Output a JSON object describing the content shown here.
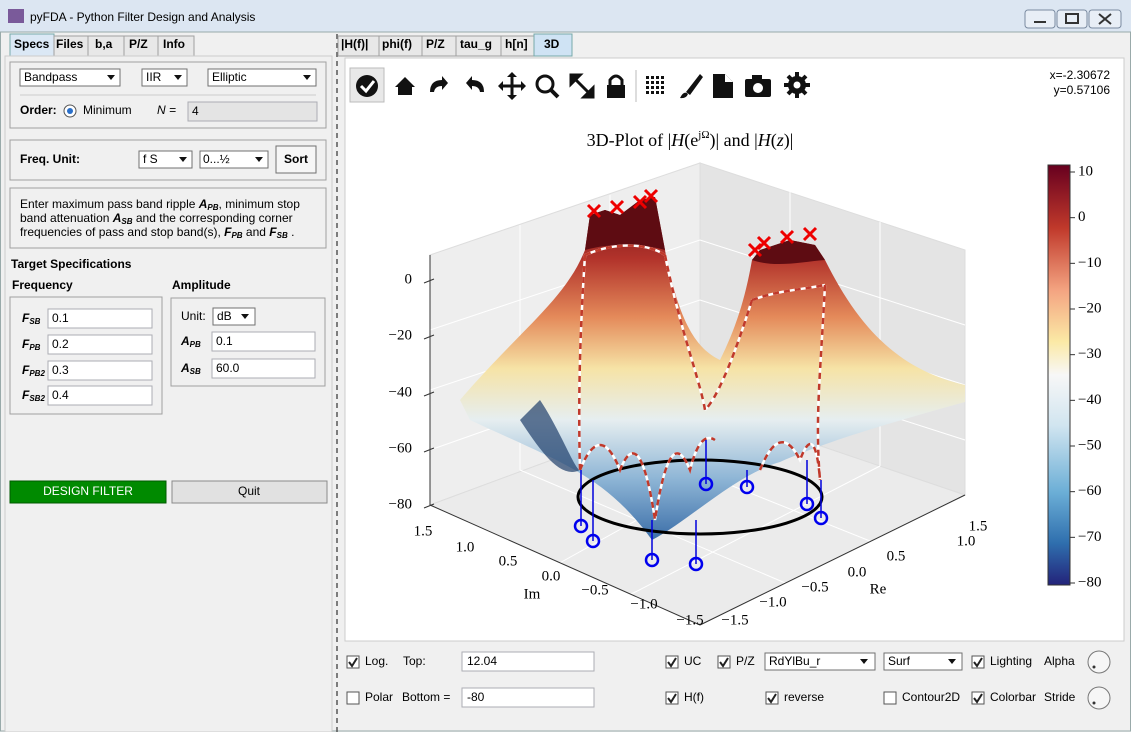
{
  "window": {
    "title": "pyFDA - Python Filter Design and Analysis"
  },
  "left_tabs": [
    "Specs",
    "Files",
    "b,a",
    "P/Z",
    "Info"
  ],
  "right_tabs": [
    "|H(f)|",
    "phi(f)",
    "P/Z",
    "tau_g",
    "h[n]",
    "3D"
  ],
  "filter": {
    "response_type": "Bandpass",
    "filter_type": "IIR",
    "design_method": "Elliptic",
    "order_label": "Order:",
    "order_option": "Minimum",
    "n_label": "N =",
    "n_value": "4"
  },
  "freq": {
    "label": "Freq. Unit:",
    "unit": "f S",
    "range": "0...½",
    "sort": "Sort"
  },
  "info": {
    "lines": [
      [
        "Enter maximum pass band ripple ",
        "A",
        "PB",
        ", minimum stop"
      ],
      [
        "band attenuation ",
        "A",
        "SB",
        " and the corresponding corner"
      ],
      [
        "frequencies of pass and stop band(s), ",
        "F",
        "PB",
        " and ",
        "F",
        "SB",
        " ."
      ]
    ]
  },
  "specs": {
    "title": "Target Specifications",
    "frequency_title": "Frequency",
    "amplitude_title": "Amplitude",
    "frequency_rows": [
      {
        "symbol": "F",
        "sub": "SB",
        "value": "0.1"
      },
      {
        "symbol": "F",
        "sub": "PB",
        "value": "0.2"
      },
      {
        "symbol": "F",
        "sub": "PB2",
        "value": "0.3"
      },
      {
        "symbol": "F",
        "sub": "SB2",
        "value": "0.4"
      }
    ],
    "unit_label": "Unit:",
    "unit": "dB",
    "amplitude_rows": [
      {
        "symbol": "A",
        "sub": "PB",
        "value": "0.1"
      },
      {
        "symbol": "A",
        "sub": "SB",
        "value": "60.0"
      }
    ]
  },
  "buttons": {
    "design": "DESIGN FILTER",
    "quit": "Quit"
  },
  "plot": {
    "readout": [
      "x=-2.30672",
      "y=0.57106"
    ],
    "title_parts": [
      "3D-Plot of |",
      "H",
      "(e",
      "jΩ",
      ")| and |",
      "H",
      "(",
      "z",
      ")|"
    ],
    "z_ticks": [
      "0",
      "−20",
      "−40",
      "−60",
      "−80"
    ],
    "im_label": "Im",
    "im_ticks": [
      "1.5",
      "1.0",
      "0.5",
      "0.0",
      "−0.5",
      "−1.0",
      "−1.5"
    ],
    "re_label": "Re",
    "re_ticks": [
      "1.5",
      "1.0",
      "0.5",
      "0.0",
      "−0.5",
      "−1.0",
      "−1.5"
    ],
    "colorbar_ticks": [
      "10",
      "0",
      "−10",
      "−20",
      "−30",
      "−40",
      "−50",
      "−60",
      "−70",
      "−80"
    ]
  },
  "controls": {
    "log": {
      "label": "Log.",
      "checked": true
    },
    "top_label": "Top:",
    "top_value": "12.04",
    "polar": {
      "label": "Polar",
      "checked": false
    },
    "bottom_label": "Bottom =",
    "bottom_value": "-80",
    "uc": {
      "label": "UC",
      "checked": true
    },
    "pz": {
      "label": "P/Z",
      "checked": true
    },
    "hf": {
      "label": "H(f)",
      "checked": true
    },
    "colormap": "RdYlBu_r",
    "reverse": {
      "label": "reverse",
      "checked": true
    },
    "plot_style": "Surf",
    "contour2d": {
      "label": "Contour2D",
      "checked": false
    },
    "lighting": {
      "label": "Lighting",
      "checked": true
    },
    "colorbar": {
      "label": "Colorbar",
      "checked": true
    },
    "alpha_label": "Alpha",
    "stride_label": "Stride"
  }
}
